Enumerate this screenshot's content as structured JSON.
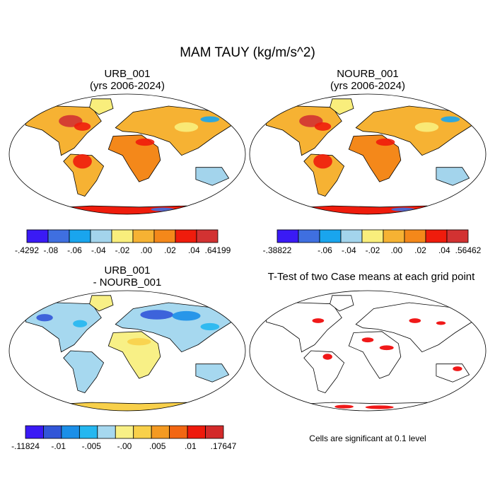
{
  "figure": {
    "title": "MAM TAUY (kg/m/s^2)"
  },
  "panels": [
    {
      "id": "urb",
      "title_line1": "URB_001",
      "title_line2": "(yrs 2006-2024)"
    },
    {
      "id": "nourb",
      "title_line1": "NOURB_001",
      "title_line2": "(yrs 2006-2024)"
    },
    {
      "id": "diff",
      "title_line1": "URB_001",
      "title_line2": "- NOURB_001"
    },
    {
      "id": "ttest",
      "title_line1": "T-Test of two Case means at each grid point",
      "title_line2": ""
    }
  ],
  "ttest_note": "Cells are significant at 0.1 level",
  "colors": {
    "significant": "#ee0000",
    "ocean": "#ffffff",
    "coast": "#000000"
  },
  "chart_data": [
    {
      "type": "heatmap",
      "title": "URB_001 (yrs 2006-2024)",
      "projection": "Robinson",
      "colorbar": {
        "labels": [
          "-.4292",
          "-.08",
          "-.06",
          "-.04",
          "-.02",
          ".00",
          ".02",
          ".04",
          ".64199"
        ],
        "colors": [
          "#3a1af5",
          "#3f6fe0",
          "#19a5ee",
          "#a3d4ec",
          "#f9ee7c",
          "#f6b233",
          "#f4881a",
          "#ef1c0c",
          "#d23232"
        ]
      },
      "dominant_land_values": "mostly .00 to .04 with strong positive over eastern North America and Amazon"
    },
    {
      "type": "heatmap",
      "title": "NOURB_001 (yrs 2006-2024)",
      "projection": "Robinson",
      "colorbar": {
        "labels": [
          "-.38822",
          "",
          "-.06",
          "-.04",
          "-.02",
          ".00",
          ".02",
          ".04",
          ".56462"
        ],
        "colors": [
          "#3a1af5",
          "#3f6fe0",
          "#19a5ee",
          "#a3d4ec",
          "#f9ee7c",
          "#f6b233",
          "#f4881a",
          "#ef1c0c",
          "#d23232"
        ]
      },
      "dominant_land_values": "mostly .00 to .04 with strong positive over eastern North America and Amazon"
    },
    {
      "type": "heatmap",
      "title": "URB_001 - NOURB_001",
      "projection": "Robinson",
      "colorbar": {
        "labels": [
          "-.11824",
          "-.01",
          "-.005",
          "-.00",
          ".005",
          ".01",
          ".17647"
        ],
        "colors": [
          "#3a1af5",
          "#3256d8",
          "#1b8fe8",
          "#25b7f0",
          "#a6d8ef",
          "#f8f086",
          "#f8d04a",
          "#f49a22",
          "#f26612",
          "#ee1a0c",
          "#d32a2a"
        ]
      },
      "dominant_land_values": "mostly -.005 to .005, negative (blue) over northern Eurasia and eastern North America"
    },
    {
      "type": "heatmap",
      "title": "T-Test of two Case means at each grid point",
      "projection": "Robinson",
      "significance_level": 0.1,
      "note": "Cells are significant at 0.1 level"
    }
  ]
}
